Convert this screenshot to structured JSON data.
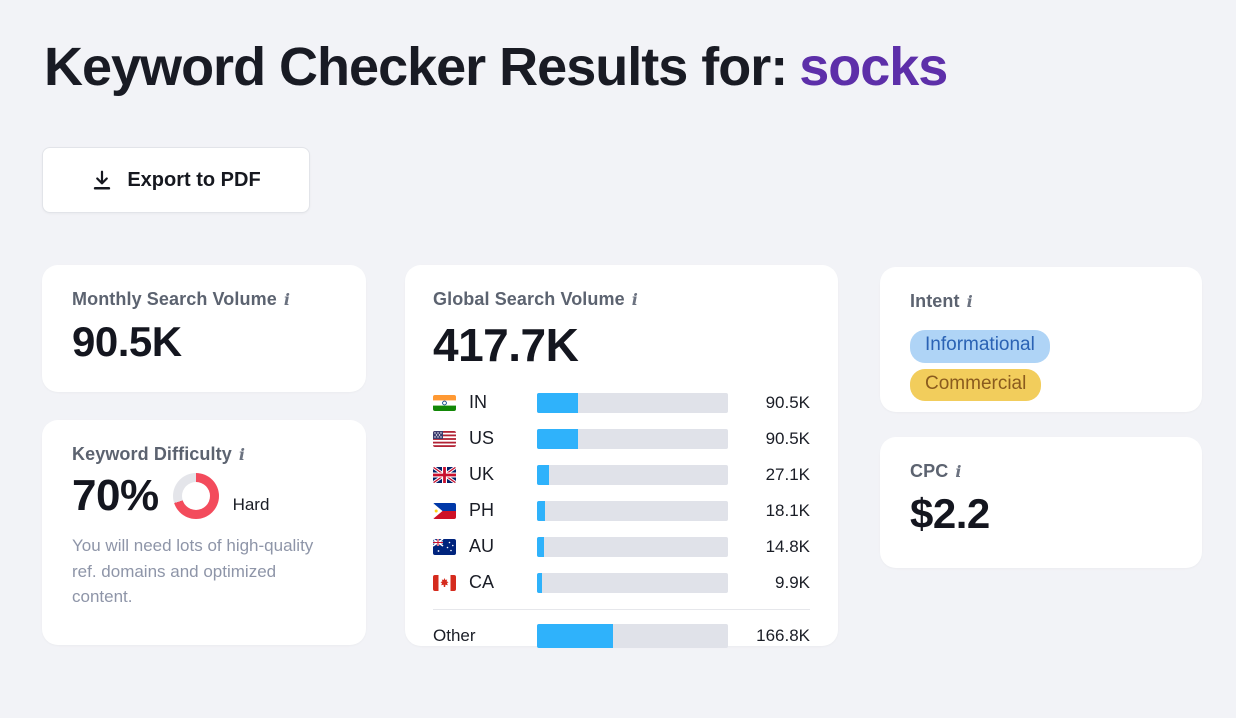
{
  "page": {
    "background": "#F2F3F7",
    "title": {
      "prefix": "Keyword Checker Results for:",
      "keyword": "socks",
      "keyword_color": "#5D2FA9"
    },
    "export_button": {
      "label": "Export to PDF",
      "icon": "download-icon"
    }
  },
  "cards": {
    "monthly_search_volume": {
      "label": "Monthly Search Volume",
      "info_icon": "i",
      "value": "90.5K"
    },
    "keyword_difficulty": {
      "label": "Keyword Difficulty",
      "info_icon": "i",
      "value": "70%",
      "percent": 70,
      "rating": "Hard",
      "description": "You will need lots of high-quality ref. domains and optimized content.",
      "donut_color": "#F34B5C",
      "donut_track": "#E4E5EA"
    },
    "global_search_volume": {
      "label": "Global Search Volume",
      "info_icon": "i",
      "value": "417.7K",
      "bar_color": "#2FB2FB",
      "bar_track": "#E0E2E9",
      "countries": [
        {
          "code": "IN",
          "flag_icon": "flag-in-icon",
          "value": "90.5K",
          "percent": 21.7
        },
        {
          "code": "US",
          "flag_icon": "flag-us-icon",
          "value": "90.5K",
          "percent": 21.7
        },
        {
          "code": "UK",
          "flag_icon": "flag-uk-icon",
          "value": "27.1K",
          "percent": 6.5
        },
        {
          "code": "PH",
          "flag_icon": "flag-ph-icon",
          "value": "18.1K",
          "percent": 4.3
        },
        {
          "code": "AU",
          "flag_icon": "flag-au-icon",
          "value": "14.8K",
          "percent": 3.5
        },
        {
          "code": "CA",
          "flag_icon": "flag-ca-icon",
          "value": "9.9K",
          "percent": 2.4
        }
      ],
      "other": {
        "label": "Other",
        "value": "166.8K",
        "percent": 39.9
      }
    },
    "intent": {
      "label": "Intent",
      "info_icon": "i",
      "badges": [
        {
          "label": "Informational",
          "bg": "#AFD4F6",
          "color": "#2A62B4"
        },
        {
          "label": "Commercial",
          "bg": "#F2CD5C",
          "color": "#8A5B1E"
        }
      ]
    },
    "cpc": {
      "label": "CPC",
      "info_icon": "i",
      "value": "$2.2"
    }
  },
  "chart_data": {
    "type": "bar",
    "orientation": "horizontal",
    "title": "Global Search Volume by country",
    "categories": [
      "IN",
      "US",
      "UK",
      "PH",
      "AU",
      "CA",
      "Other"
    ],
    "values": [
      90500,
      90500,
      27100,
      18100,
      14800,
      9900,
      166800
    ],
    "value_labels": [
      "90.5K",
      "90.5K",
      "27.1K",
      "18.1K",
      "14.8K",
      "9.9K",
      "166.8K"
    ],
    "total": 417700,
    "total_label": "417.7K",
    "bar_color": "#2FB2FB",
    "track_color": "#E0E2E9"
  }
}
